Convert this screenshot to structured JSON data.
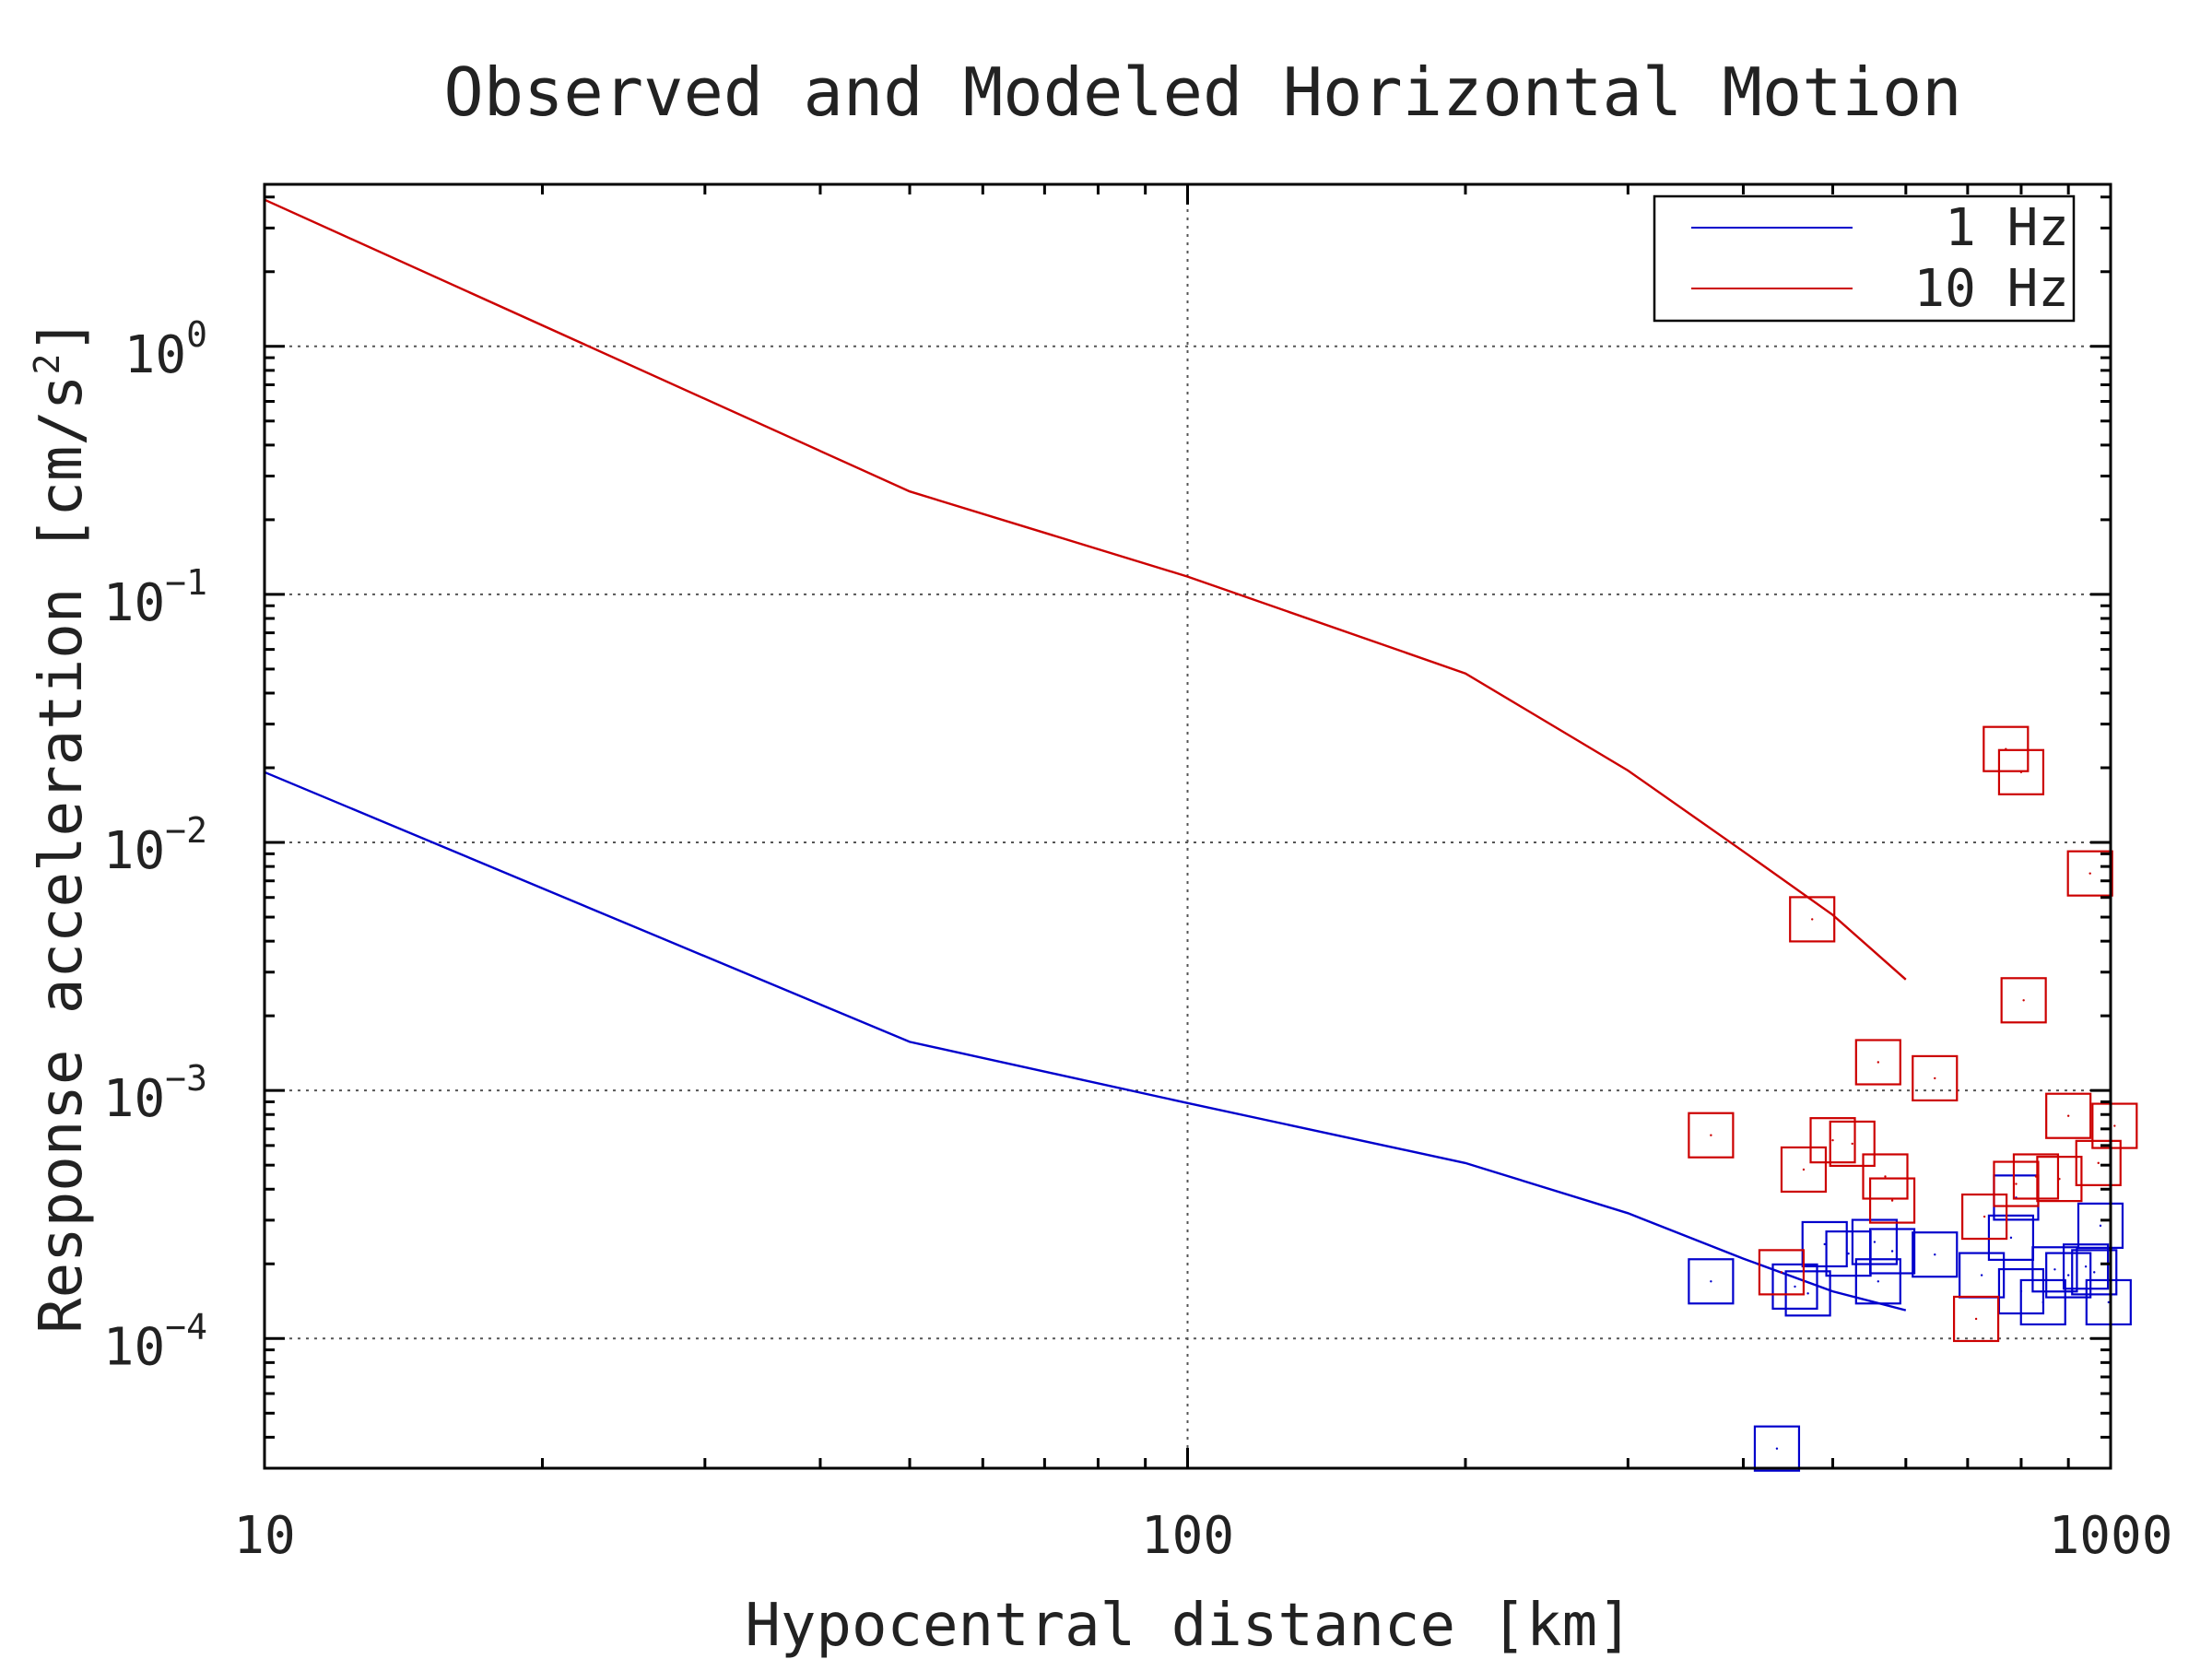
{
  "chart_data": {
    "type": "scatter",
    "title": "Observed and Modeled Horizontal Motion",
    "xlabel": "Hypocentral distance [km]",
    "ylabel": "Response acceleration [cm/s",
    "ylabel_sup": "2",
    "ylabel_end": "]",
    "xscale": "log",
    "yscale": "log",
    "xlim": [
      10,
      1000
    ],
    "ylim": [
      3e-05,
      4.5
    ],
    "grid": true,
    "legend_position": "top-right",
    "x_ticks": [
      {
        "value": 10,
        "label": "10"
      },
      {
        "value": 100,
        "label": "100"
      },
      {
        "value": 1000,
        "label": "1000"
      }
    ],
    "y_ticks": [
      {
        "value": 1,
        "base": "10",
        "exp": "0"
      },
      {
        "value": 0.1,
        "base": "10",
        "exp": "−1"
      },
      {
        "value": 0.01,
        "base": "10",
        "exp": "−2"
      },
      {
        "value": 0.001,
        "base": "10",
        "exp": "−3"
      },
      {
        "value": 0.0001,
        "base": "10",
        "exp": "−4"
      }
    ],
    "series": [
      {
        "name": "1 Hz",
        "color": "#0000cc",
        "model": {
          "x": [
            10,
            50,
            100,
            200,
            300,
            400,
            500,
            600
          ],
          "y": [
            0.0192,
            0.00157,
            0.00089,
            0.00051,
            0.00032,
            0.00021,
            0.000155,
            0.00013
          ]
        },
        "observed": [
          [
            369,
            0.00017
          ],
          [
            435,
            3.6e-05
          ],
          [
            455,
            0.000162
          ],
          [
            470,
            0.000152
          ],
          [
            490,
            0.00024
          ],
          [
            520,
            0.00022
          ],
          [
            555,
            0.000245
          ],
          [
            560,
            0.00017
          ],
          [
            580,
            0.000225
          ],
          [
            645,
            0.000218
          ],
          [
            725,
            0.00018
          ],
          [
            780,
            0.000255
          ],
          [
            800,
            0.000155
          ],
          [
            845,
            0.00014
          ],
          [
            870,
            0.00019
          ],
          [
            900,
            0.00018
          ],
          [
            940,
            0.000195
          ],
          [
            960,
            0.000185
          ],
          [
            975,
            0.000285
          ],
          [
            995,
            0.00014
          ],
          [
            790,
            0.00037
          ]
        ]
      },
      {
        "name": "10 Hz",
        "color": "#cc0000",
        "model": {
          "x": [
            10,
            50,
            100,
            200,
            300,
            400,
            500,
            600
          ],
          "y": [
            3.9,
            0.26,
            0.118,
            0.048,
            0.0195,
            0.0092,
            0.0051,
            0.0028
          ]
        },
        "observed": [
          [
            369,
            0.00066
          ],
          [
            440,
            0.000185
          ],
          [
            465,
            0.00048
          ],
          [
            475,
            0.0049
          ],
          [
            500,
            0.00063
          ],
          [
            525,
            0.00061
          ],
          [
            560,
            0.0013
          ],
          [
            570,
            0.00045
          ],
          [
            580,
            0.00036
          ],
          [
            645,
            0.00112
          ],
          [
            715,
            0.00012
          ],
          [
            730,
            0.00031
          ],
          [
            770,
            0.0238
          ],
          [
            790,
            0.00042
          ],
          [
            800,
            0.0192
          ],
          [
            805,
            0.00231
          ],
          [
            830,
            0.00045
          ],
          [
            880,
            0.00044
          ],
          [
            900,
            0.00079
          ],
          [
            950,
            0.0075
          ],
          [
            970,
            0.00051
          ],
          [
            1010,
            0.00072
          ]
        ]
      }
    ]
  }
}
